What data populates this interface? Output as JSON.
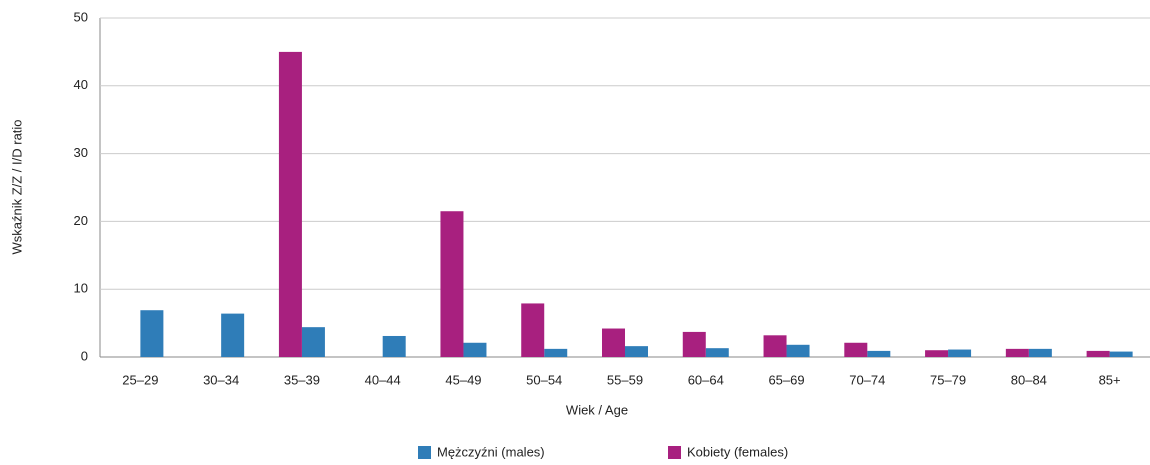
{
  "chart_data": {
    "type": "bar",
    "x_label": "Wiek / Age",
    "y_label": "Wskaźnik Z/Z / I/D ratio",
    "categories": [
      "25–29",
      "30–34",
      "35–39",
      "40–44",
      "45–49",
      "50–54",
      "55–59",
      "60–64",
      "65–69",
      "70–74",
      "75–79",
      "80–84",
      "85+"
    ],
    "series": [
      {
        "name": "Mężczyźni (males)",
        "color": "#2f7db8",
        "values": [
          6.9,
          6.4,
          4.4,
          3.1,
          2.1,
          1.2,
          1.6,
          1.3,
          1.8,
          0.9,
          1.1,
          1.2,
          0.8
        ]
      },
      {
        "name": "Kobiety (females)",
        "color": "#a8207f",
        "values": [
          null,
          null,
          45,
          null,
          21.5,
          7.9,
          4.2,
          3.7,
          3.2,
          2.1,
          1.0,
          1.2,
          0.9
        ]
      }
    ],
    "ylim": [
      0,
      50
    ],
    "yticks": [
      0,
      10,
      20,
      30,
      40,
      50
    ],
    "grid": true,
    "legend": "bottom"
  }
}
